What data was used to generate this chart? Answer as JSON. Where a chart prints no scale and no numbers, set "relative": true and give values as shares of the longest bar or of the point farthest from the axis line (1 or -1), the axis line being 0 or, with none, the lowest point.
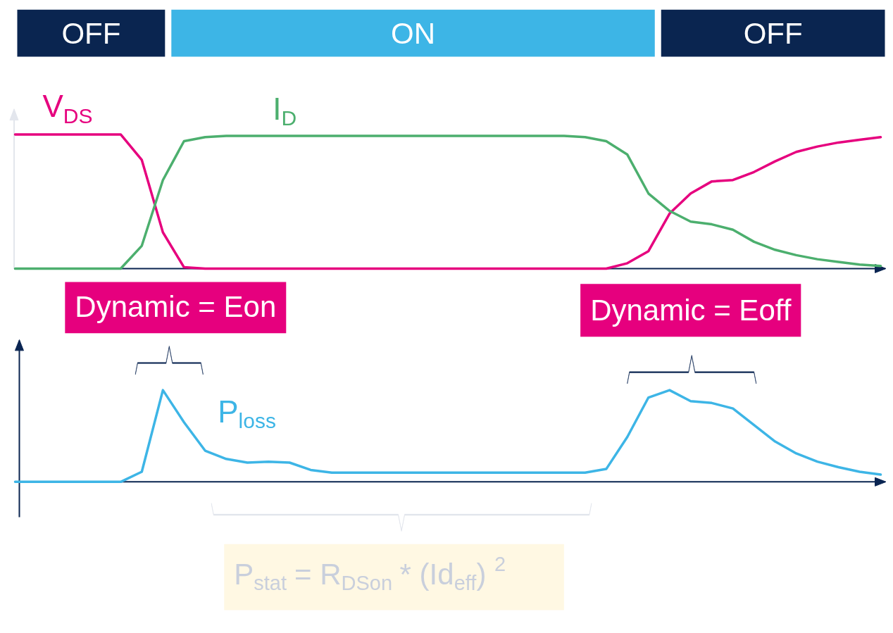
{
  "chart_data": [
    {
      "type": "line",
      "relative": true,
      "categories": [
        null,
        null,
        null,
        null,
        null,
        null,
        null,
        null,
        null,
        null,
        null,
        null,
        null,
        null,
        null,
        null,
        null,
        null,
        null,
        null,
        null,
        null,
        null,
        null,
        null,
        null,
        null,
        null,
        null,
        null,
        null,
        null,
        null,
        null,
        null,
        null,
        null,
        null,
        null,
        null,
        null,
        null
      ],
      "series": [
        {
          "name": "V$_{DS}$",
          "color": "#e6007e",
          "values": [
            1.0,
            1.0,
            1.0,
            1.0,
            1.0,
            1.0,
            0.81,
            0.27,
            0.01,
            0,
            0,
            0,
            0,
            0,
            0,
            0,
            0,
            0,
            0,
            0,
            0,
            0,
            0,
            0,
            0,
            0,
            0,
            0,
            0,
            0.04,
            0.13,
            0.41,
            0.56,
            0.65,
            0.66,
            0.72,
            0.8,
            0.87,
            0.91,
            0.94,
            0.96,
            0.98
          ]
        },
        {
          "name": "I$_{D}$",
          "color": "#4caf6e",
          "values": [
            0,
            0,
            0,
            0,
            0,
            0,
            0.17,
            0.66,
            0.95,
            0.98,
            0.99,
            0.99,
            0.99,
            0.99,
            0.99,
            0.99,
            0.99,
            0.99,
            0.99,
            0.99,
            0.99,
            0.99,
            0.99,
            0.99,
            0.99,
            0.99,
            0.99,
            0.98,
            0.95,
            0.85,
            0.56,
            0.43,
            0.35,
            0.33,
            0.29,
            0.2,
            0.14,
            0.1,
            0.07,
            0.05,
            0.03,
            0.02
          ]
        }
      ],
      "annotations": [
        "OFF",
        "ON",
        "OFF"
      ]
    },
    {
      "type": "line",
      "relative": true,
      "categories": [
        null,
        null,
        null,
        null,
        null,
        null,
        null,
        null,
        null,
        null,
        null,
        null,
        null,
        null,
        null,
        null,
        null,
        null,
        null,
        null,
        null,
        null,
        null,
        null,
        null,
        null,
        null,
        null,
        null,
        null,
        null,
        null,
        null,
        null,
        null,
        null,
        null,
        null,
        null,
        null,
        null,
        null
      ],
      "series": [
        {
          "name": "P$_{loss}$",
          "color": "#3db5e6",
          "values": [
            0,
            0,
            0,
            0,
            0,
            0,
            0.11,
            1.0,
            0.65,
            0.34,
            0.25,
            0.21,
            0.22,
            0.21,
            0.13,
            0.1,
            0.1,
            0.1,
            0.1,
            0.1,
            0.1,
            0.1,
            0.1,
            0.1,
            0.1,
            0.1,
            0.1,
            0.1,
            0.14,
            0.49,
            0.92,
            1.0,
            0.88,
            0.86,
            0.8,
            0.62,
            0.44,
            0.31,
            0.22,
            0.16,
            0.11,
            0.08
          ]
        }
      ],
      "annotations": [
        "Dynamic = Eon",
        "Dynamic = Eoff",
        "P$_{stat}$ = R$_{DSon}$ * (Id$_{eff}$) $^{2}$"
      ]
    }
  ]
}
